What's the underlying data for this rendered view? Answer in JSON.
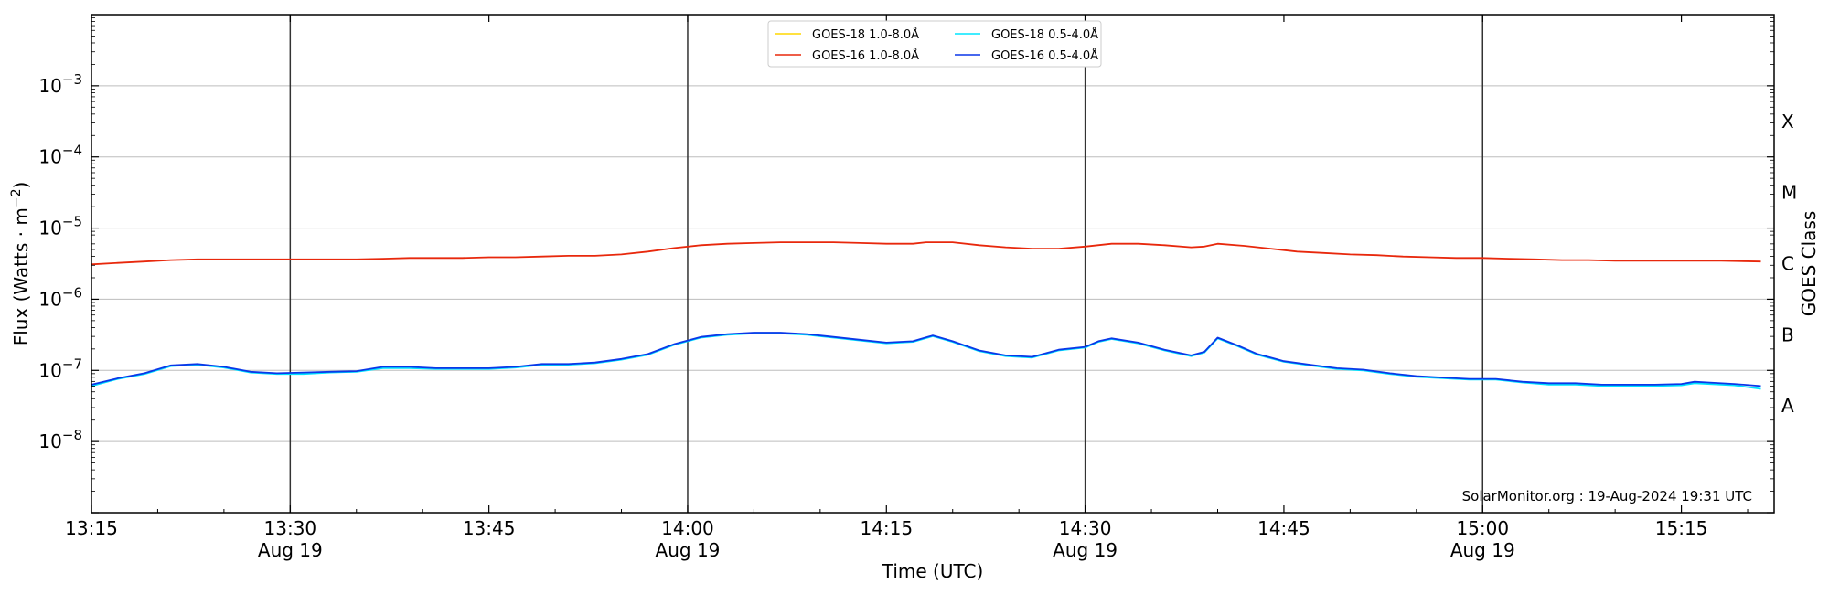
{
  "chart_data": {
    "type": "line",
    "x_unit": "minutes after 13:15 UTC, 19-Aug-2024",
    "xlim": [
      0,
      127
    ],
    "y_scale": "log",
    "ylim_exponent": [
      -9,
      -2
    ],
    "grid": "horizontal at each decade",
    "x_ticks": [
      {
        "x": 0,
        "time": "13:15",
        "date": ""
      },
      {
        "x": 15,
        "time": "13:30",
        "date": "Aug 19"
      },
      {
        "x": 30,
        "time": "13:45",
        "date": ""
      },
      {
        "x": 45,
        "time": "14:00",
        "date": "Aug 19"
      },
      {
        "x": 60,
        "time": "14:15",
        "date": ""
      },
      {
        "x": 75,
        "time": "14:30",
        "date": "Aug 19"
      },
      {
        "x": 90,
        "time": "14:45",
        "date": ""
      },
      {
        "x": 105,
        "time": "15:00",
        "date": "Aug 19"
      },
      {
        "x": 120,
        "time": "15:15",
        "date": ""
      }
    ],
    "vertical_lines_x": [
      15,
      45,
      75,
      105
    ],
    "y_ticks": [
      {
        "exp": -3,
        "base": "10",
        "sup": "−3"
      },
      {
        "exp": -4,
        "base": "10",
        "sup": "−4"
      },
      {
        "exp": -5,
        "base": "10",
        "sup": "−5"
      },
      {
        "exp": -6,
        "base": "10",
        "sup": "−6"
      },
      {
        "exp": -7,
        "base": "10",
        "sup": "−7"
      },
      {
        "exp": -8,
        "base": "10",
        "sup": "−8"
      }
    ],
    "class_labels": [
      {
        "label": "X",
        "exp": -3.5
      },
      {
        "label": "M",
        "exp": -4.5
      },
      {
        "label": "C",
        "exp": -5.5
      },
      {
        "label": "B",
        "exp": -6.5
      },
      {
        "label": "A",
        "exp": -7.5
      }
    ],
    "xlabel": "Time (UTC)",
    "ylabel_main": "Flux (Watts · m",
    "ylabel_sup": "−2",
    "ylabel_close": ")",
    "ylabel_right": "GOES Class",
    "watermark": "SolarMonitor.org : 19-Aug-2024 19:31 UTC",
    "legend_placement": "top-center",
    "series": [
      {
        "name": "GOES-18 1.0-8.0Å",
        "color": "#ffd700",
        "visible": false,
        "x": [],
        "y_log10": []
      },
      {
        "name": "GOES-18 0.5-4.0Å",
        "color": "#00e5ff",
        "x": [
          0,
          2,
          4,
          6,
          8,
          10,
          12,
          14,
          16,
          18,
          20,
          22,
          24,
          26,
          28,
          30,
          32,
          34,
          36,
          38,
          40,
          42,
          44,
          46,
          48,
          50,
          52,
          54,
          56,
          58,
          60,
          62,
          63.5,
          65,
          67,
          69,
          71,
          73,
          75,
          76,
          77,
          79,
          81,
          83,
          84,
          85,
          86.5,
          88,
          90,
          92,
          94,
          96,
          98,
          100,
          102,
          104,
          106,
          108,
          110,
          112,
          114,
          116,
          118,
          120,
          121,
          122,
          124,
          126
        ],
        "y_log10": [
          -7.22,
          -7.12,
          -7.05,
          -6.94,
          -6.92,
          -6.96,
          -7.03,
          -7.05,
          -7.05,
          -7.03,
          -7.02,
          -6.97,
          -6.97,
          -6.98,
          -6.98,
          -6.98,
          -6.96,
          -6.92,
          -6.92,
          -6.9,
          -6.85,
          -6.78,
          -6.64,
          -6.54,
          -6.5,
          -6.48,
          -6.48,
          -6.5,
          -6.54,
          -6.58,
          -6.62,
          -6.6,
          -6.52,
          -6.6,
          -6.73,
          -6.8,
          -6.82,
          -6.72,
          -6.68,
          -6.6,
          -6.56,
          -6.62,
          -6.72,
          -6.8,
          -6.75,
          -6.55,
          -6.66,
          -6.78,
          -6.88,
          -6.93,
          -6.98,
          -7.0,
          -7.05,
          -7.09,
          -7.11,
          -7.13,
          -7.13,
          -7.17,
          -7.2,
          -7.2,
          -7.22,
          -7.22,
          -7.22,
          -7.21,
          -7.18,
          -7.19,
          -7.21,
          -7.26
        ]
      },
      {
        "name": "GOES-16 1.0-8.0Å",
        "color": "#e8280c",
        "x": [
          0,
          2,
          4,
          6,
          8,
          10,
          12,
          14,
          16,
          18,
          20,
          22,
          24,
          26,
          28,
          30,
          32,
          34,
          36,
          38,
          40,
          42,
          44,
          46,
          48,
          50,
          52,
          54,
          56,
          58,
          60,
          61,
          62,
          63,
          65,
          67,
          69,
          71,
          73,
          75,
          77,
          79,
          81,
          83,
          84,
          85,
          87,
          89,
          91,
          93,
          95,
          97,
          99,
          101,
          103,
          105,
          107,
          109,
          111,
          113,
          115,
          117,
          119,
          121,
          123,
          126
        ],
        "y_log10": [
          -5.51,
          -5.49,
          -5.47,
          -5.45,
          -5.44,
          -5.44,
          -5.44,
          -5.44,
          -5.44,
          -5.44,
          -5.44,
          -5.43,
          -5.42,
          -5.42,
          -5.42,
          -5.41,
          -5.41,
          -5.4,
          -5.39,
          -5.39,
          -5.37,
          -5.33,
          -5.28,
          -5.24,
          -5.22,
          -5.21,
          -5.2,
          -5.2,
          -5.2,
          -5.21,
          -5.22,
          -5.22,
          -5.22,
          -5.2,
          -5.2,
          -5.24,
          -5.27,
          -5.29,
          -5.29,
          -5.26,
          -5.22,
          -5.22,
          -5.24,
          -5.27,
          -5.26,
          -5.22,
          -5.25,
          -5.29,
          -5.33,
          -5.35,
          -5.37,
          -5.38,
          -5.4,
          -5.41,
          -5.42,
          -5.42,
          -5.43,
          -5.44,
          -5.45,
          -5.45,
          -5.46,
          -5.46,
          -5.46,
          -5.46,
          -5.46,
          -5.47
        ]
      },
      {
        "name": "GOES-16 0.5-4.0Å",
        "color": "#0a37e8",
        "x": [
          0,
          2,
          4,
          6,
          8,
          10,
          12,
          14,
          16,
          18,
          20,
          22,
          24,
          26,
          28,
          30,
          32,
          34,
          36,
          38,
          40,
          42,
          44,
          46,
          48,
          50,
          52,
          54,
          56,
          58,
          60,
          62,
          63.5,
          65,
          67,
          69,
          71,
          73,
          75,
          76,
          77,
          79,
          81,
          83,
          84,
          85,
          86.5,
          88,
          90,
          92,
          94,
          96,
          98,
          100,
          102,
          104,
          106,
          108,
          110,
          112,
          114,
          116,
          118,
          120,
          121,
          122,
          124,
          126
        ],
        "y_log10": [
          -7.2,
          -7.11,
          -7.04,
          -6.93,
          -6.91,
          -6.95,
          -7.02,
          -7.04,
          -7.03,
          -7.02,
          -7.01,
          -6.95,
          -6.95,
          -6.97,
          -6.97,
          -6.97,
          -6.95,
          -6.91,
          -6.91,
          -6.89,
          -6.84,
          -6.77,
          -6.63,
          -6.53,
          -6.49,
          -6.47,
          -6.47,
          -6.49,
          -6.53,
          -6.57,
          -6.61,
          -6.59,
          -6.51,
          -6.59,
          -6.72,
          -6.79,
          -6.81,
          -6.71,
          -6.67,
          -6.59,
          -6.55,
          -6.61,
          -6.71,
          -6.79,
          -6.74,
          -6.54,
          -6.65,
          -6.77,
          -6.87,
          -6.92,
          -6.97,
          -6.99,
          -7.04,
          -7.08,
          -7.1,
          -7.12,
          -7.12,
          -7.16,
          -7.18,
          -7.18,
          -7.2,
          -7.2,
          -7.2,
          -7.19,
          -7.16,
          -7.17,
          -7.19,
          -7.22
        ]
      }
    ]
  }
}
